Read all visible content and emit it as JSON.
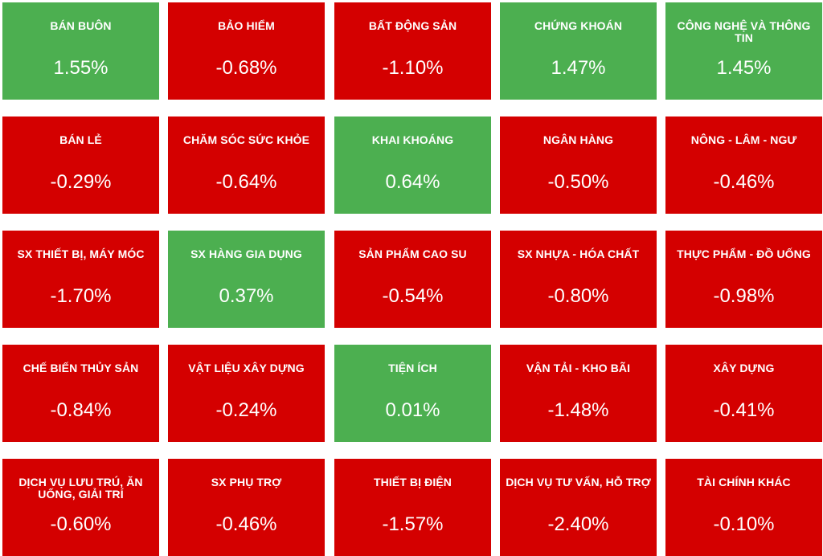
{
  "colors": {
    "up": "#4caf50",
    "down": "#d40000",
    "text": "#ffffff"
  },
  "sectors": [
    {
      "name": "BÁN BUÔN",
      "change": "1.55%",
      "trend": "up"
    },
    {
      "name": "BẢO HIỂM",
      "change": "-0.68%",
      "trend": "down"
    },
    {
      "name": "BẤT ĐỘNG SẢN",
      "change": "-1.10%",
      "trend": "down"
    },
    {
      "name": "CHỨNG KHOÁN",
      "change": "1.47%",
      "trend": "up"
    },
    {
      "name": "CÔNG NGHỆ VÀ THÔNG TIN",
      "change": "1.45%",
      "trend": "up"
    },
    {
      "name": "BÁN LẺ",
      "change": "-0.29%",
      "trend": "down"
    },
    {
      "name": "CHĂM SÓC SỨC KHỎE",
      "change": "-0.64%",
      "trend": "down"
    },
    {
      "name": "KHAI KHOÁNG",
      "change": "0.64%",
      "trend": "up"
    },
    {
      "name": "NGÂN HÀNG",
      "change": "-0.50%",
      "trend": "down"
    },
    {
      "name": "NÔNG - LÂM - NGƯ",
      "change": "-0.46%",
      "trend": "down"
    },
    {
      "name": "SX THIẾT BỊ, MÁY MÓC",
      "change": "-1.70%",
      "trend": "down"
    },
    {
      "name": "SX HÀNG GIA DỤNG",
      "change": "0.37%",
      "trend": "up"
    },
    {
      "name": "SẢN PHẨM CAO SU",
      "change": "-0.54%",
      "trend": "down"
    },
    {
      "name": "SX NHỰA - HÓA CHẤT",
      "change": "-0.80%",
      "trend": "down"
    },
    {
      "name": "THỰC PHẨM - ĐỒ UỐNG",
      "change": "-0.98%",
      "trend": "down"
    },
    {
      "name": "CHẾ BIẾN THỦY SẢN",
      "change": "-0.84%",
      "trend": "down"
    },
    {
      "name": "VẬT LIỆU XÂY DỰNG",
      "change": "-0.24%",
      "trend": "down"
    },
    {
      "name": "TIỆN ÍCH",
      "change": "0.01%",
      "trend": "up"
    },
    {
      "name": "VẬN TẢI - KHO BÃI",
      "change": "-1.48%",
      "trend": "down"
    },
    {
      "name": "XÂY DỰNG",
      "change": "-0.41%",
      "trend": "down"
    },
    {
      "name": "DỊCH VỤ LƯU TRÚ, ĂN UỐNG, GIẢI TRÍ",
      "change": "-0.60%",
      "trend": "down"
    },
    {
      "name": "SX PHỤ TRỢ",
      "change": "-0.46%",
      "trend": "down"
    },
    {
      "name": "THIẾT BỊ ĐIỆN",
      "change": "-1.57%",
      "trend": "down"
    },
    {
      "name": "DỊCH VỤ TƯ VẤN, HỖ TRỢ",
      "change": "-2.40%",
      "trend": "down"
    },
    {
      "name": "TÀI CHÍNH KHÁC",
      "change": "-0.10%",
      "trend": "down"
    }
  ]
}
